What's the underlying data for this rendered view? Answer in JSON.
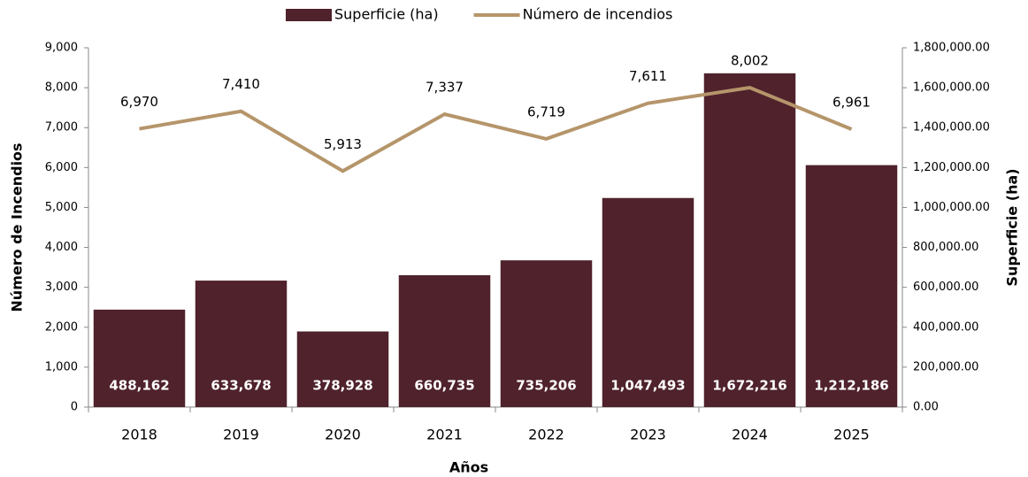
{
  "chart_data": {
    "type": "combo",
    "categories": [
      "2018",
      "2019",
      "2020",
      "2021",
      "2022",
      "2023",
      "2024",
      "2025"
    ],
    "series": [
      {
        "name": "Superficie (ha)",
        "type": "bar",
        "axis": "y2",
        "color": "#4f222c",
        "values": [
          488162,
          633678,
          378928,
          660735,
          735206,
          1047493,
          1672216,
          1212186
        ],
        "value_labels": [
          "488,162",
          "633,678",
          "378,928",
          "660,735",
          "735,206",
          "1,047,493",
          "1,672,216",
          "1,212,186"
        ]
      },
      {
        "name": "Número de incendios",
        "type": "line",
        "axis": "y",
        "color": "#b5956a",
        "values": [
          6970,
          7410,
          5913,
          7337,
          6719,
          7611,
          8002,
          6961
        ],
        "value_labels": [
          "6,970",
          "7,410",
          "5,913",
          "7,337",
          "6,719",
          "7,611",
          "8,002",
          "6,961"
        ]
      }
    ],
    "ylabel": "Número de Incendios",
    "y2label": "Superficie (ha)",
    "xlabel": "Años",
    "ylim": [
      0,
      9000
    ],
    "yticks": [
      0,
      {
        "value": 1000,
        "label": "1,000"
      },
      {
        "value": 2000,
        "label": "2,000"
      },
      {
        "value": 3000,
        "label": "3,000"
      },
      {
        "value": 4000,
        "label": "4,000"
      },
      {
        "value": 5000,
        "label": "5,000"
      },
      {
        "value": 6000,
        "label": "6,000"
      },
      {
        "value": 7000,
        "label": "7,000"
      },
      {
        "value": 8000,
        "label": "8,000"
      },
      {
        "value": 9000,
        "label": "9,000"
      }
    ],
    "y2lim": [
      0,
      1800000
    ],
    "y2ticks": [
      {
        "value": 0,
        "label": "0.00"
      },
      {
        "value": 200000,
        "label": "200,000.00"
      },
      {
        "value": 400000,
        "label": "400,000.00"
      },
      {
        "value": 600000,
        "label": "600,000.00"
      },
      {
        "value": 800000,
        "label": "800,000.00"
      },
      {
        "value": 1000000,
        "label": "1,000,000.00"
      },
      {
        "value": 1200000,
        "label": "1,200,000.00"
      },
      {
        "value": 1400000,
        "label": "1,400,000.00"
      },
      {
        "value": 1600000,
        "label": "1,600,000.00"
      },
      {
        "value": 1800000,
        "label": "1,800,000.00"
      }
    ],
    "legend": "top"
  }
}
